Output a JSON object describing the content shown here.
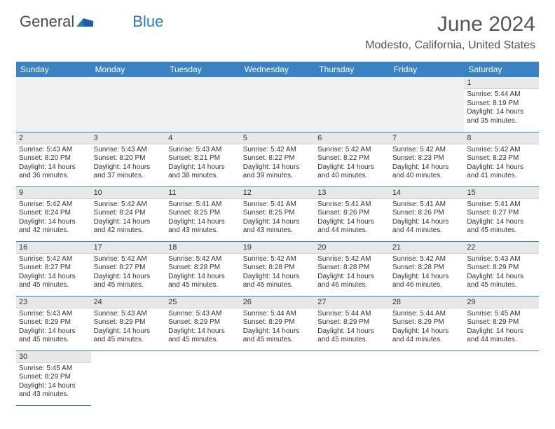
{
  "logo": {
    "text_a": "General",
    "text_b": "Blue"
  },
  "title": "June 2024",
  "location": "Modesto, California, United States",
  "colors": {
    "header_bg": "#3b82c4",
    "header_text": "#ffffff",
    "row_border": "#3b82c4",
    "daynum_bg": "#e8e8e8",
    "empty_bg": "#f0f0f0",
    "body_text": "#333333",
    "title_text": "#555555"
  },
  "weekdays": [
    "Sunday",
    "Monday",
    "Tuesday",
    "Wednesday",
    "Thursday",
    "Friday",
    "Saturday"
  ],
  "leading_blanks": 6,
  "days": [
    {
      "n": 1,
      "sunrise": "5:44 AM",
      "sunset": "8:19 PM",
      "daylight": "14 hours and 35 minutes."
    },
    {
      "n": 2,
      "sunrise": "5:43 AM",
      "sunset": "8:20 PM",
      "daylight": "14 hours and 36 minutes."
    },
    {
      "n": 3,
      "sunrise": "5:43 AM",
      "sunset": "8:20 PM",
      "daylight": "14 hours and 37 minutes."
    },
    {
      "n": 4,
      "sunrise": "5:43 AM",
      "sunset": "8:21 PM",
      "daylight": "14 hours and 38 minutes."
    },
    {
      "n": 5,
      "sunrise": "5:42 AM",
      "sunset": "8:22 PM",
      "daylight": "14 hours and 39 minutes."
    },
    {
      "n": 6,
      "sunrise": "5:42 AM",
      "sunset": "8:22 PM",
      "daylight": "14 hours and 40 minutes."
    },
    {
      "n": 7,
      "sunrise": "5:42 AM",
      "sunset": "8:23 PM",
      "daylight": "14 hours and 40 minutes."
    },
    {
      "n": 8,
      "sunrise": "5:42 AM",
      "sunset": "8:23 PM",
      "daylight": "14 hours and 41 minutes."
    },
    {
      "n": 9,
      "sunrise": "5:42 AM",
      "sunset": "8:24 PM",
      "daylight": "14 hours and 42 minutes."
    },
    {
      "n": 10,
      "sunrise": "5:42 AM",
      "sunset": "8:24 PM",
      "daylight": "14 hours and 42 minutes."
    },
    {
      "n": 11,
      "sunrise": "5:41 AM",
      "sunset": "8:25 PM",
      "daylight": "14 hours and 43 minutes."
    },
    {
      "n": 12,
      "sunrise": "5:41 AM",
      "sunset": "8:25 PM",
      "daylight": "14 hours and 43 minutes."
    },
    {
      "n": 13,
      "sunrise": "5:41 AM",
      "sunset": "8:26 PM",
      "daylight": "14 hours and 44 minutes."
    },
    {
      "n": 14,
      "sunrise": "5:41 AM",
      "sunset": "8:26 PM",
      "daylight": "14 hours and 44 minutes."
    },
    {
      "n": 15,
      "sunrise": "5:41 AM",
      "sunset": "8:27 PM",
      "daylight": "14 hours and 45 minutes."
    },
    {
      "n": 16,
      "sunrise": "5:42 AM",
      "sunset": "8:27 PM",
      "daylight": "14 hours and 45 minutes."
    },
    {
      "n": 17,
      "sunrise": "5:42 AM",
      "sunset": "8:27 PM",
      "daylight": "14 hours and 45 minutes."
    },
    {
      "n": 18,
      "sunrise": "5:42 AM",
      "sunset": "8:28 PM",
      "daylight": "14 hours and 45 minutes."
    },
    {
      "n": 19,
      "sunrise": "5:42 AM",
      "sunset": "8:28 PM",
      "daylight": "14 hours and 45 minutes."
    },
    {
      "n": 20,
      "sunrise": "5:42 AM",
      "sunset": "8:28 PM",
      "daylight": "14 hours and 46 minutes."
    },
    {
      "n": 21,
      "sunrise": "5:42 AM",
      "sunset": "8:28 PM",
      "daylight": "14 hours and 46 minutes."
    },
    {
      "n": 22,
      "sunrise": "5:43 AM",
      "sunset": "8:29 PM",
      "daylight": "14 hours and 45 minutes."
    },
    {
      "n": 23,
      "sunrise": "5:43 AM",
      "sunset": "8:29 PM",
      "daylight": "14 hours and 45 minutes."
    },
    {
      "n": 24,
      "sunrise": "5:43 AM",
      "sunset": "8:29 PM",
      "daylight": "14 hours and 45 minutes."
    },
    {
      "n": 25,
      "sunrise": "5:43 AM",
      "sunset": "8:29 PM",
      "daylight": "14 hours and 45 minutes."
    },
    {
      "n": 26,
      "sunrise": "5:44 AM",
      "sunset": "8:29 PM",
      "daylight": "14 hours and 45 minutes."
    },
    {
      "n": 27,
      "sunrise": "5:44 AM",
      "sunset": "8:29 PM",
      "daylight": "14 hours and 45 minutes."
    },
    {
      "n": 28,
      "sunrise": "5:44 AM",
      "sunset": "8:29 PM",
      "daylight": "14 hours and 44 minutes."
    },
    {
      "n": 29,
      "sunrise": "5:45 AM",
      "sunset": "8:29 PM",
      "daylight": "14 hours and 44 minutes."
    },
    {
      "n": 30,
      "sunrise": "5:45 AM",
      "sunset": "8:29 PM",
      "daylight": "14 hours and 43 minutes."
    }
  ],
  "labels": {
    "sunrise": "Sunrise:",
    "sunset": "Sunset:",
    "daylight": "Daylight:"
  }
}
